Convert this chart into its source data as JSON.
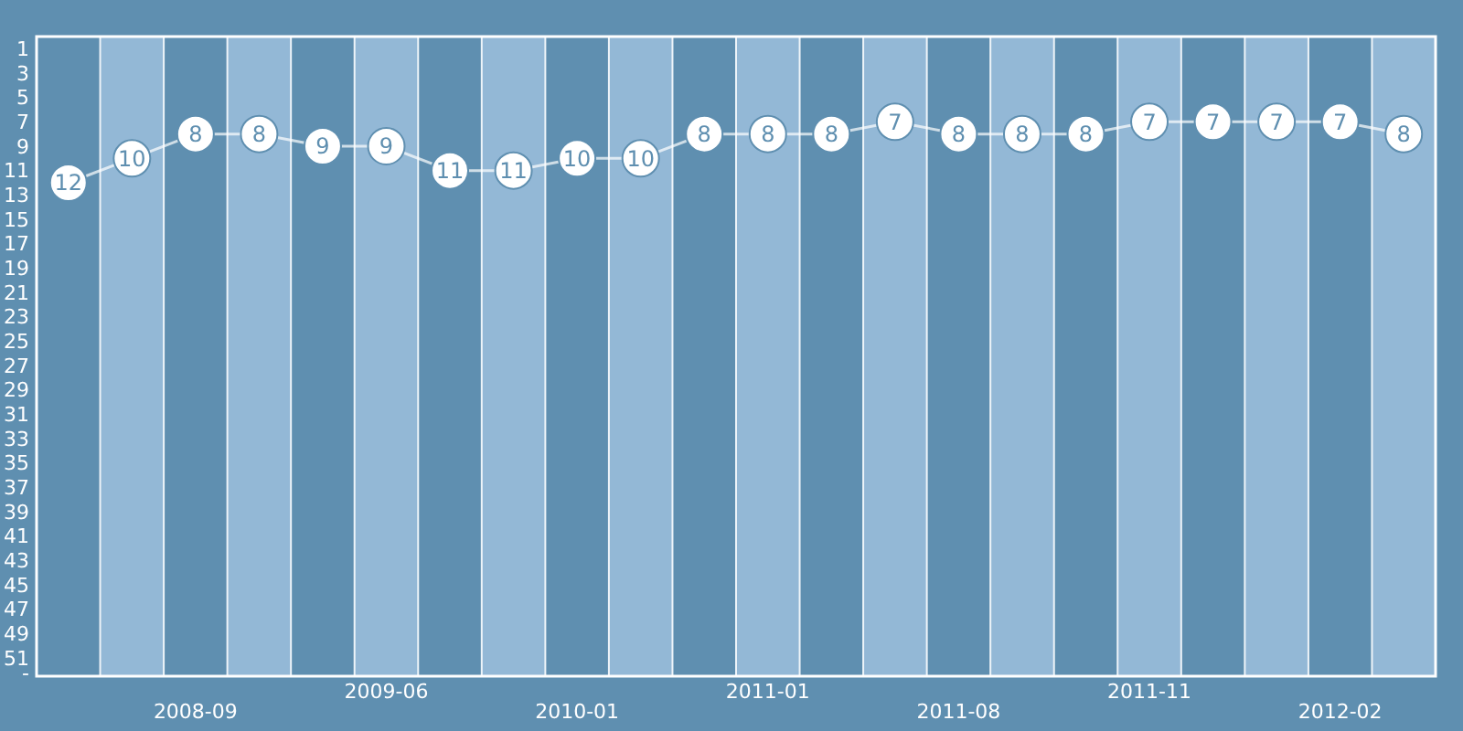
{
  "chart_data": {
    "type": "line",
    "categories": [
      null,
      null,
      "2008-09",
      null,
      null,
      "2009-06",
      null,
      null,
      "2010-01",
      null,
      null,
      "2011-01",
      null,
      null,
      "2011-08",
      null,
      null,
      "2011-11",
      null,
      null,
      "2012-02",
      null
    ],
    "series": [
      {
        "color": "#ffffff",
        "values": [
          12,
          10,
          8,
          8,
          9,
          9,
          11,
          11,
          10,
          10,
          8,
          8,
          8,
          7,
          8,
          8,
          8,
          7,
          7,
          7,
          7,
          8
        ]
      }
    ],
    "ylim": [
      52.5,
      0
    ],
    "yticks": [
      1,
      3,
      5,
      7,
      9,
      11,
      13,
      15,
      17,
      19,
      21,
      23,
      25,
      27,
      29,
      31,
      33,
      35,
      37,
      39,
      41,
      43,
      45,
      47,
      49,
      51,
      {
        "value": 52.2,
        "label": "-"
      }
    ],
    "marker": "circle",
    "data_labels": true
  }
}
